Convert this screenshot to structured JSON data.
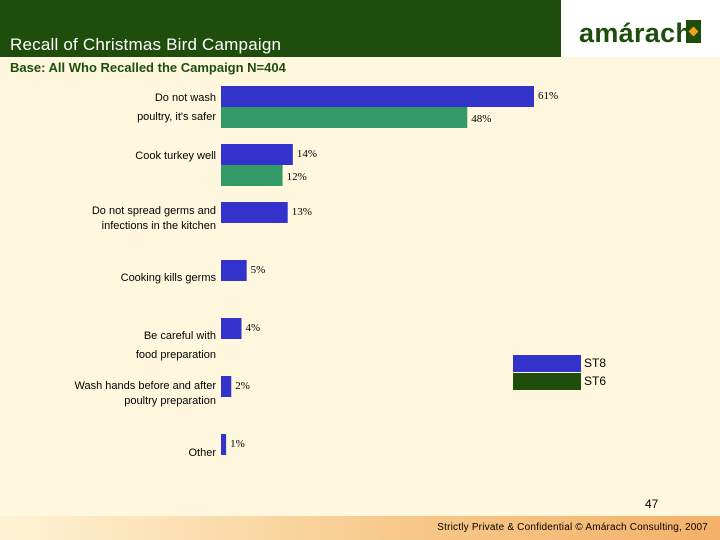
{
  "header": {
    "title": "Recall of Christmas Bird Campaign",
    "subtitle": "Base: All Who Recalled the Campaign N=404",
    "logo_text": "amárach"
  },
  "colors": {
    "st8": "#3333CC",
    "st6": "#339966",
    "brand": "#1E4D0C",
    "accent": "#F5A31B"
  },
  "chart_data": {
    "type": "bar",
    "orientation": "horizontal",
    "title": "Recall of Christmas Bird Campaign",
    "categories": [
      [
        "Do not wash",
        "poultry, it's safer"
      ],
      [
        "Cook turkey well"
      ],
      [
        "Do not spread germs and",
        "infections in the kitchen"
      ],
      [
        "Cooking kills germs"
      ],
      [
        "Be careful with",
        "food preparation"
      ],
      [
        "Wash hands before and after",
        "poultry preparation"
      ],
      [
        "Other"
      ]
    ],
    "series": [
      {
        "name": "ST8",
        "color": "#3333CC",
        "values": [
          61,
          14,
          13,
          5,
          4,
          2,
          1
        ],
        "labels": [
          "61%",
          "14%",
          "13%",
          "5%",
          "4%",
          "2%",
          "1%"
        ]
      },
      {
        "name": "ST6",
        "color": "#339966",
        "values": [
          48,
          12,
          null,
          null,
          null,
          null,
          null
        ],
        "labels": [
          "48%",
          "12%",
          null,
          null,
          null,
          null,
          null
        ]
      }
    ],
    "xlim": [
      0,
      61
    ],
    "legend_position": "right",
    "grid": false
  },
  "legend": {
    "items": [
      {
        "label": "ST8"
      },
      {
        "label": "ST6"
      }
    ]
  },
  "page_number": "47",
  "footer": {
    "text": "Strictly Private & Confidential © Amárach Consulting, 2007"
  }
}
